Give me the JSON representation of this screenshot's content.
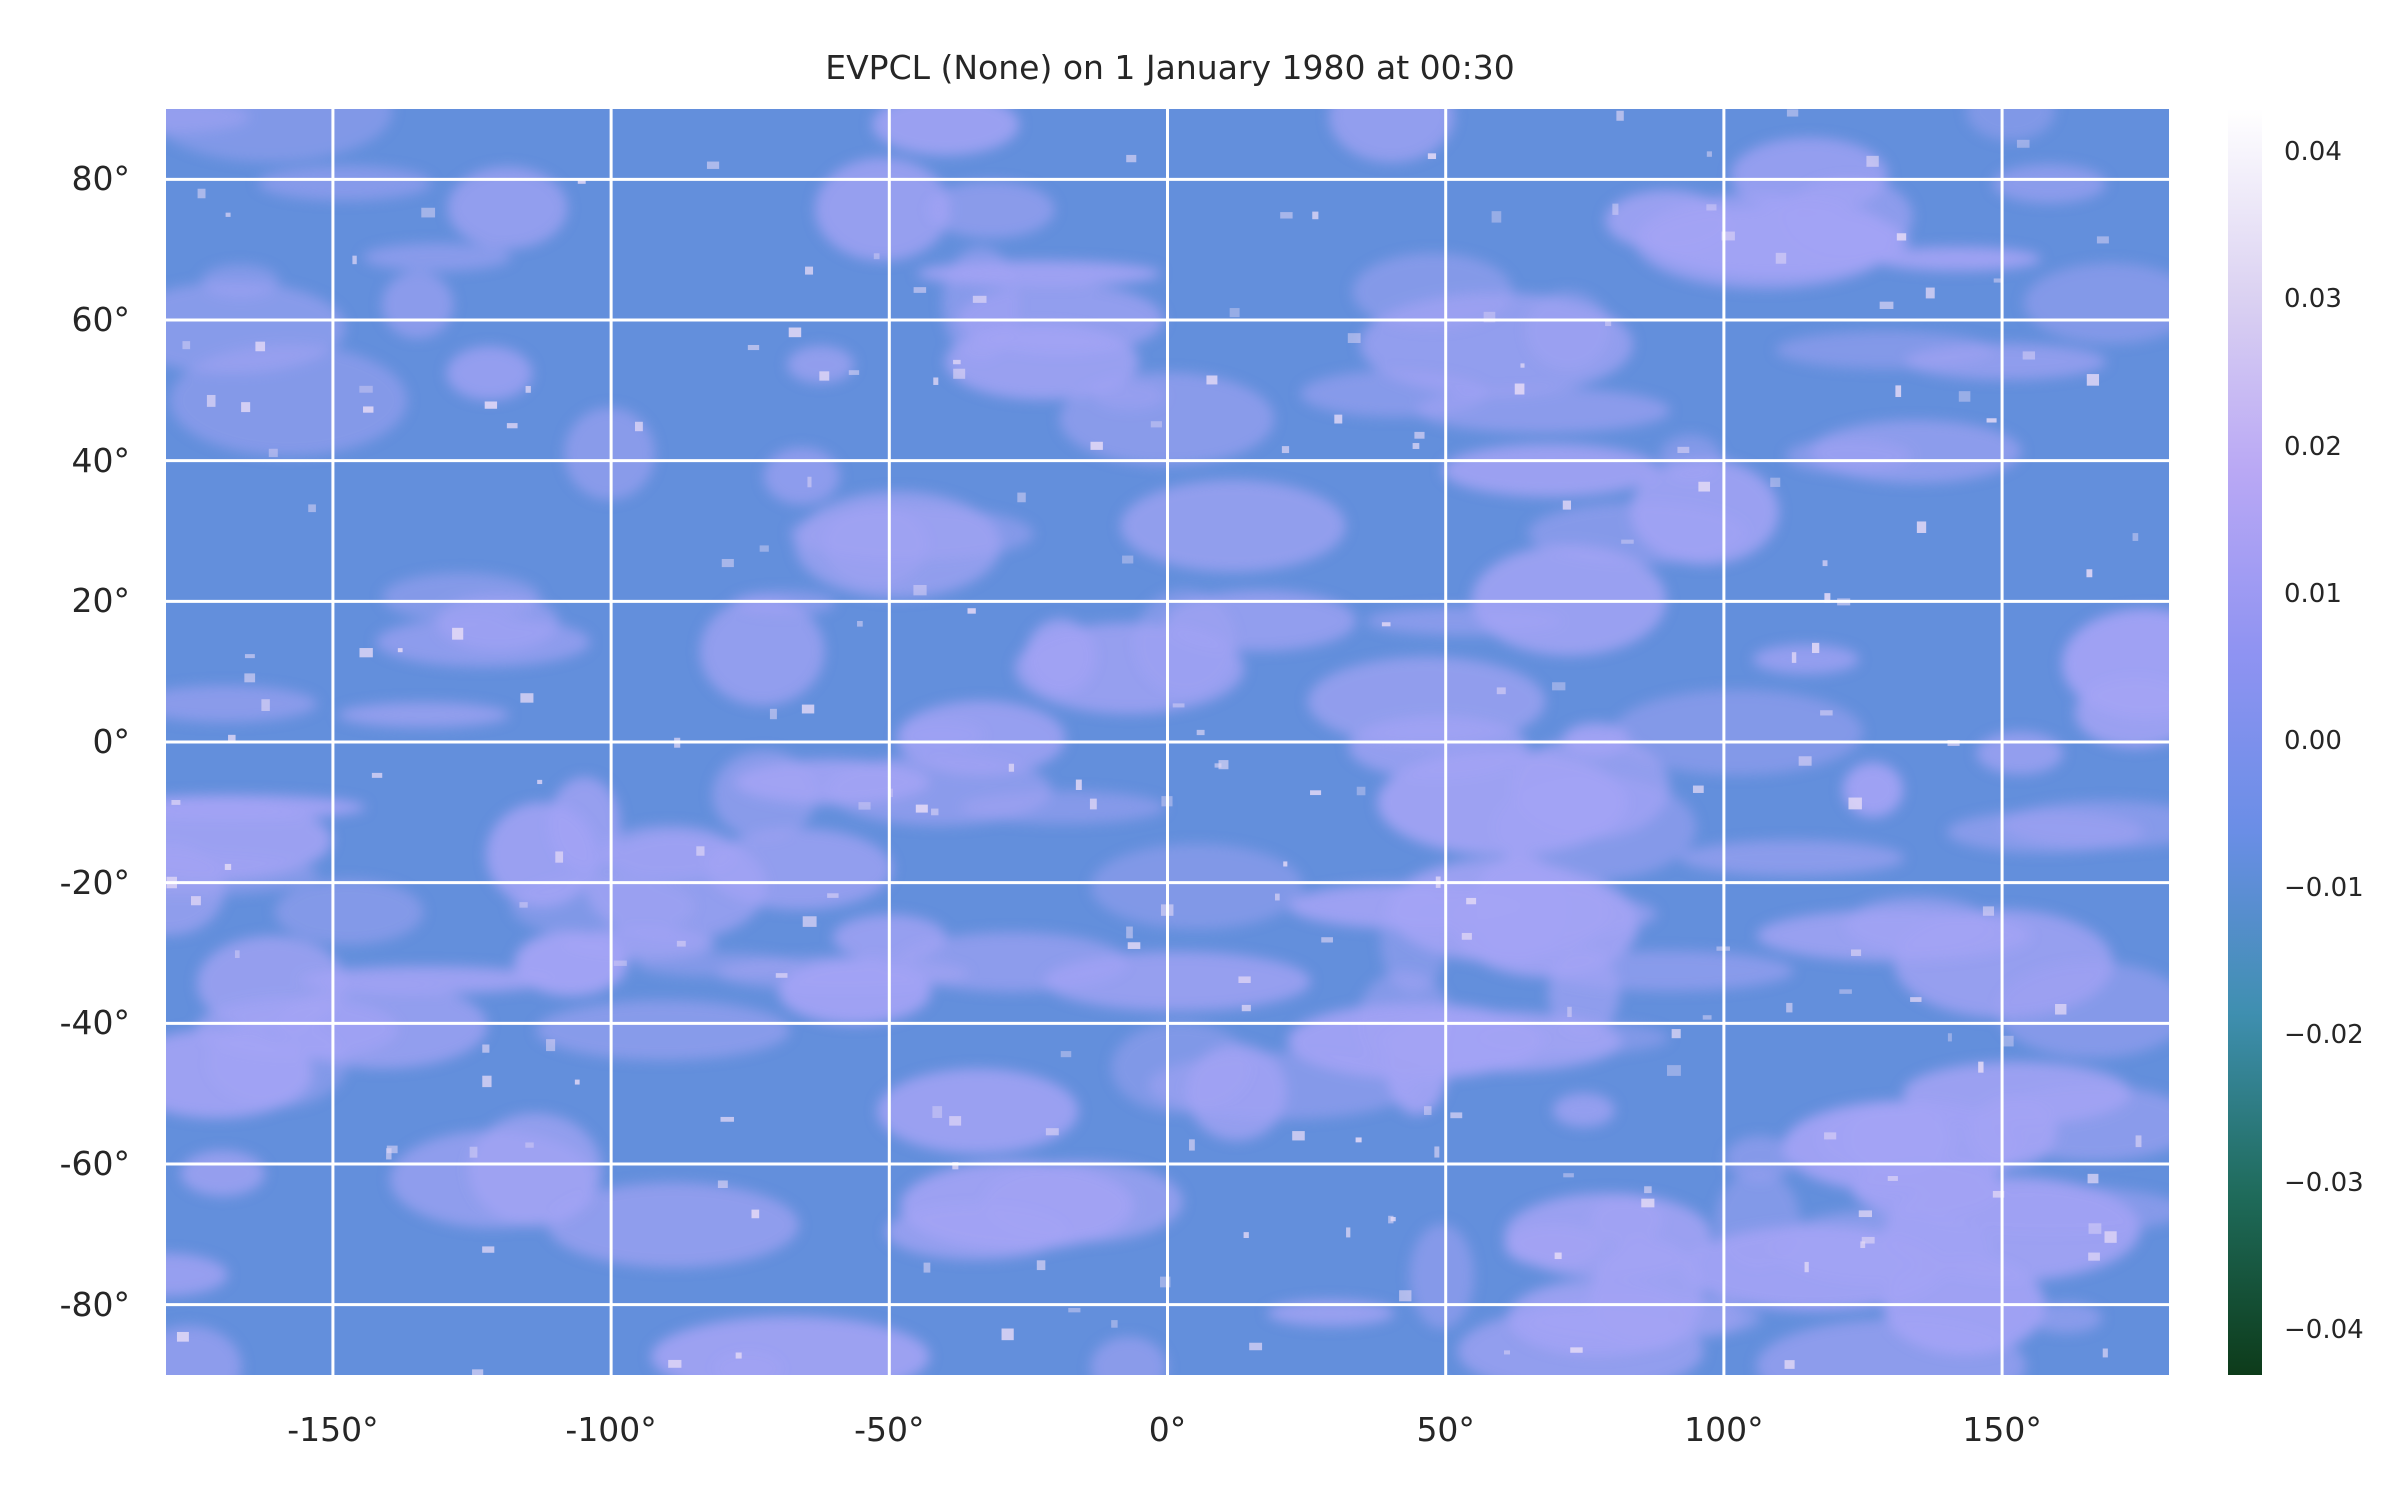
{
  "chart_data": {
    "type": "heatmap",
    "title": "EVPCL (None) on 1 January 1980 at 00:30",
    "xlabel": "",
    "ylabel": "",
    "xlim": [
      -180,
      180
    ],
    "ylim": [
      -90,
      90
    ],
    "x_ticks": [
      -150,
      -100,
      -50,
      0,
      50,
      100,
      150
    ],
    "x_tick_labels": [
      "-150°",
      "-100°",
      "-50°",
      "0°",
      "50°",
      "100°",
      "150°"
    ],
    "y_ticks": [
      80,
      60,
      40,
      20,
      0,
      -20,
      -40,
      -60,
      -80
    ],
    "y_tick_labels": [
      "80°",
      "60°",
      "40°",
      "20°",
      "0°",
      "-20°",
      "-40°",
      "-60°",
      "-80°"
    ],
    "grid": true,
    "colorbar": {
      "range": [
        -0.043,
        0.043
      ],
      "ticks": [
        0.04,
        0.03,
        0.02,
        0.01,
        0.0,
        -0.01,
        -0.02,
        -0.03,
        -0.04
      ],
      "tick_labels": [
        "0.04",
        "0.03",
        "0.02",
        "0.01",
        "0.00",
        "−0.01",
        "−0.02",
        "−0.03",
        "−0.04"
      ],
      "colors": [
        "#0d3b1a",
        "#1f6b5b",
        "#3f8fb0",
        "#6a8ee6",
        "#8f93f2",
        "#b9a8f4",
        "#dcd3f2",
        "#ffffff"
      ]
    },
    "field_colors": {
      "base": "#638fdc",
      "cloud": "#a3a3f4",
      "bright": "#e2d8f6"
    }
  }
}
